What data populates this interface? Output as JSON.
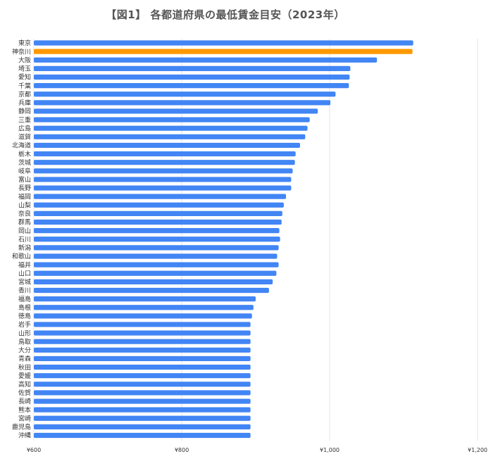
{
  "chart_data": {
    "type": "bar",
    "orientation": "horizontal",
    "title": "【図1】 各都道府県の最低賃金目安（2023年）",
    "xlabel": "",
    "ylabel": "",
    "xlim": [
      600,
      1200
    ],
    "xticks": [
      600,
      800,
      1000,
      1200
    ],
    "xtick_labels": [
      "¥600",
      "¥800",
      "¥1,000",
      "¥1,200"
    ],
    "grid": "vertical",
    "legend": "none",
    "colors": {
      "default": "#4285f4",
      "highlight": "#ff9900"
    },
    "highlight_category": "神奈川",
    "categories": [
      "東京",
      "神奈川",
      "大阪",
      "埼玉",
      "愛知",
      "千葉",
      "京都",
      "兵庫",
      "静岡",
      "三重",
      "広島",
      "滋賀",
      "北海道",
      "栃木",
      "茨城",
      "岐阜",
      "富山",
      "長野",
      "福岡",
      "山梨",
      "奈良",
      "群馬",
      "岡山",
      "石川",
      "新潟",
      "和歌山",
      "福井",
      "山口",
      "宮城",
      "香川",
      "福島",
      "島根",
      "徳島",
      "岩手",
      "山形",
      "鳥取",
      "大分",
      "青森",
      "秋田",
      "愛媛",
      "高知",
      "佐賀",
      "長崎",
      "熊本",
      "宮崎",
      "鹿児島",
      "沖縄"
    ],
    "values": [
      1113,
      1112,
      1064,
      1028,
      1027,
      1026,
      1008,
      1001,
      984,
      973,
      970,
      967,
      960,
      954,
      953,
      950,
      948,
      948,
      941,
      938,
      936,
      935,
      932,
      933,
      931,
      929,
      931,
      928,
      923,
      918,
      900,
      897,
      895,
      893,
      893,
      893,
      893,
      893,
      893,
      893,
      893,
      893,
      893,
      893,
      893,
      893,
      893
    ]
  }
}
